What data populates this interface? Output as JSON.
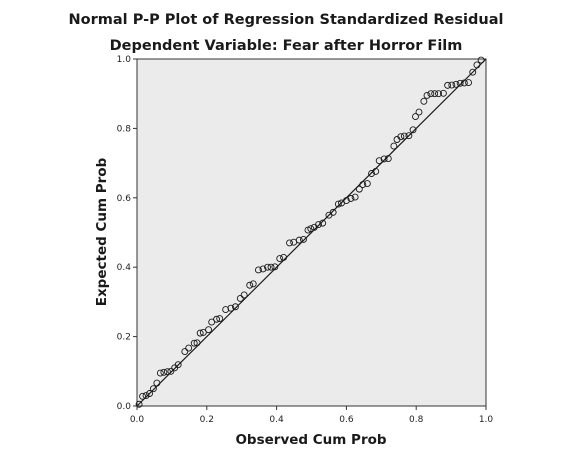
{
  "chart_data": {
    "type": "scatter",
    "title": "Normal P-P Plot of Regression Standardized Residual",
    "subtitle": "Dependent Variable: Fear after Horror Film",
    "xlabel": "Observed Cum Prob",
    "ylabel": "Expected Cum Prob",
    "xlim": [
      0,
      1
    ],
    "ylim": [
      0,
      1
    ],
    "x_ticks": [
      "0.0",
      "0.2",
      "0.4",
      "0.6",
      "0.8",
      "1.0"
    ],
    "y_ticks": [
      "0.0",
      "0.2",
      "0.4",
      "0.6",
      "0.8",
      "1.0"
    ],
    "grid": false,
    "legend": "none",
    "reference_line": [
      [
        0,
        0
      ],
      [
        1,
        1
      ]
    ],
    "points": [
      [
        0.006,
        0.005
      ],
      [
        0.016,
        0.028
      ],
      [
        0.026,
        0.03
      ],
      [
        0.036,
        0.036
      ],
      [
        0.047,
        0.05
      ],
      [
        0.057,
        0.066
      ],
      [
        0.067,
        0.095
      ],
      [
        0.077,
        0.097
      ],
      [
        0.087,
        0.099
      ],
      [
        0.097,
        0.1
      ],
      [
        0.108,
        0.11
      ],
      [
        0.118,
        0.119
      ],
      [
        0.137,
        0.157
      ],
      [
        0.148,
        0.167
      ],
      [
        0.164,
        0.181
      ],
      [
        0.172,
        0.182
      ],
      [
        0.181,
        0.21
      ],
      [
        0.19,
        0.212
      ],
      [
        0.205,
        0.22
      ],
      [
        0.214,
        0.242
      ],
      [
        0.228,
        0.25
      ],
      [
        0.237,
        0.252
      ],
      [
        0.254,
        0.278
      ],
      [
        0.269,
        0.282
      ],
      [
        0.282,
        0.286
      ],
      [
        0.296,
        0.31
      ],
      [
        0.307,
        0.32
      ],
      [
        0.323,
        0.348
      ],
      [
        0.333,
        0.352
      ],
      [
        0.348,
        0.392
      ],
      [
        0.361,
        0.395
      ],
      [
        0.374,
        0.4
      ],
      [
        0.384,
        0.4
      ],
      [
        0.395,
        0.401
      ],
      [
        0.409,
        0.425
      ],
      [
        0.42,
        0.428
      ],
      [
        0.437,
        0.47
      ],
      [
        0.449,
        0.472
      ],
      [
        0.465,
        0.478
      ],
      [
        0.477,
        0.48
      ],
      [
        0.49,
        0.507
      ],
      [
        0.498,
        0.511
      ],
      [
        0.508,
        0.515
      ],
      [
        0.52,
        0.523
      ],
      [
        0.532,
        0.527
      ],
      [
        0.55,
        0.55
      ],
      [
        0.562,
        0.558
      ],
      [
        0.577,
        0.582
      ],
      [
        0.586,
        0.585
      ],
      [
        0.6,
        0.592
      ],
      [
        0.613,
        0.598
      ],
      [
        0.625,
        0.602
      ],
      [
        0.637,
        0.625
      ],
      [
        0.647,
        0.638
      ],
      [
        0.66,
        0.641
      ],
      [
        0.672,
        0.67
      ],
      [
        0.684,
        0.676
      ],
      [
        0.694,
        0.707
      ],
      [
        0.708,
        0.712
      ],
      [
        0.72,
        0.713
      ],
      [
        0.736,
        0.749
      ],
      [
        0.745,
        0.768
      ],
      [
        0.756,
        0.776
      ],
      [
        0.766,
        0.778
      ],
      [
        0.779,
        0.779
      ],
      [
        0.791,
        0.796
      ],
      [
        0.798,
        0.834
      ],
      [
        0.808,
        0.847
      ],
      [
        0.822,
        0.878
      ],
      [
        0.831,
        0.895
      ],
      [
        0.842,
        0.9
      ],
      [
        0.853,
        0.9
      ],
      [
        0.864,
        0.9
      ],
      [
        0.878,
        0.901
      ],
      [
        0.89,
        0.924
      ],
      [
        0.902,
        0.925
      ],
      [
        0.914,
        0.927
      ],
      [
        0.926,
        0.93
      ],
      [
        0.938,
        0.931
      ],
      [
        0.95,
        0.932
      ],
      [
        0.962,
        0.962
      ],
      [
        0.974,
        0.983
      ],
      [
        0.986,
        0.997
      ]
    ],
    "colors": {
      "plot_background": "#ebebeb",
      "marker_stroke": "#1a1a1a",
      "line": "#1a1a1a",
      "frame": "#333333"
    }
  }
}
